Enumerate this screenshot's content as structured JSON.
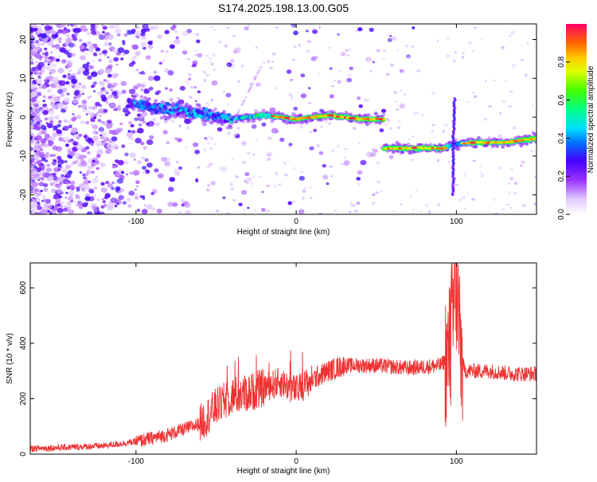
{
  "title": "S174.2025.198.13.00.G05",
  "colors": {
    "signal": "#ee3333",
    "axis": "#000000",
    "background": "#ffffff"
  },
  "chart_data": [
    {
      "type": "heatmap",
      "xlabel": "Height of straight line (km)",
      "ylabel": "Frequency (Hz)",
      "xlim": [
        -166,
        150
      ],
      "ylim": [
        -25,
        24
      ],
      "xticks": [
        -100,
        0,
        100
      ],
      "yticks": [
        -20,
        -10,
        0,
        10,
        20
      ],
      "grid": false,
      "colorbar": {
        "label": "Normalized spectral amplitude",
        "range": [
          0,
          1
        ],
        "ticks": [
          "0.0",
          "0.2",
          "0.4",
          "0.6",
          "0.8"
        ],
        "colormap": "rainbow (white-violet-blue-cyan-green-yellow-red)"
      },
      "ridge": [
        {
          "x": -100,
          "y": 3.5,
          "amp": 0.4
        },
        {
          "x": -80,
          "y": 2,
          "amp": 0.45
        },
        {
          "x": -60,
          "y": 1,
          "amp": 0.45
        },
        {
          "x": -40,
          "y": -0.5,
          "amp": 0.5
        },
        {
          "x": -20,
          "y": 0.5,
          "amp": 0.7
        },
        {
          "x": 0,
          "y": -0.5,
          "amp": 0.85
        },
        {
          "x": 20,
          "y": 0.5,
          "amp": 0.85
        },
        {
          "x": 40,
          "y": -0.5,
          "amp": 0.85
        },
        {
          "x": 54,
          "y": -0.5,
          "amp": 0.85
        },
        {
          "x": 55,
          "y": -8,
          "amp": 0.85
        },
        {
          "x": 75,
          "y": -8,
          "amp": 0.85
        },
        {
          "x": 92,
          "y": -8,
          "amp": 0.85
        },
        {
          "x": 98,
          "y": -7,
          "amp": 0.6
        },
        {
          "x": 100,
          "y": -7,
          "amp": 0.5
        },
        {
          "x": 110,
          "y": -6.5,
          "amp": 0.85
        },
        {
          "x": 130,
          "y": -6.5,
          "amp": 0.85
        },
        {
          "x": 150,
          "y": -5.5,
          "amp": 0.85
        }
      ]
    },
    {
      "type": "line",
      "xlabel": "Height of straight line (km)",
      "ylabel": "SNR (10 * v/v)",
      "xlim": [
        -166,
        150
      ],
      "ylim": [
        0,
        690
      ],
      "xticks": [
        -100,
        0,
        100
      ],
      "yticks": [
        0,
        200,
        400,
        600
      ],
      "grid": false,
      "series": [
        {
          "x": [
            -166,
            -140,
            -120,
            -100,
            -80,
            -60,
            -50,
            -40,
            -30,
            -20,
            -10,
            0,
            10,
            20,
            30,
            50,
            70,
            90,
            95,
            98,
            100,
            102,
            105,
            110,
            120,
            135,
            150
          ],
          "y": [
            20,
            25,
            30,
            45,
            70,
            110,
            170,
            210,
            220,
            240,
            260,
            230,
            270,
            300,
            320,
            320,
            310,
            320,
            350,
            500,
            620,
            400,
            300,
            300,
            300,
            290,
            290
          ]
        }
      ]
    }
  ]
}
